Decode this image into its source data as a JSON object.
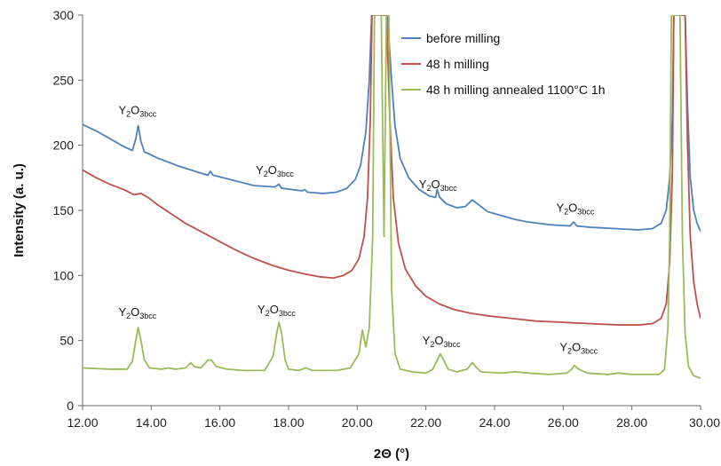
{
  "chart_data": {
    "type": "line",
    "title": "",
    "xlabel": "2Θ (°)",
    "ylabel": "Intensity (a. u.)",
    "xlim": [
      12,
      30
    ],
    "ylim": [
      0,
      300
    ],
    "x_ticks": [
      "12.00",
      "14.00",
      "16.00",
      "18.00",
      "20.00",
      "22.00",
      "24.00",
      "26.00",
      "28.00",
      "30.00"
    ],
    "y_ticks": [
      "0",
      "50",
      "100",
      "150",
      "200",
      "250",
      "300"
    ],
    "grid": false,
    "legend_position": "top-right",
    "series": [
      {
        "name": "before milling",
        "color": "#4f81bd",
        "points": [
          [
            12.0,
            216
          ],
          [
            12.4,
            211
          ],
          [
            12.8,
            205
          ],
          [
            13.2,
            199
          ],
          [
            13.45,
            196
          ],
          [
            13.55,
            205
          ],
          [
            13.62,
            215
          ],
          [
            13.7,
            203
          ],
          [
            13.8,
            195
          ],
          [
            14.2,
            190
          ],
          [
            14.8,
            184
          ],
          [
            15.4,
            179
          ],
          [
            15.65,
            177
          ],
          [
            15.72,
            180
          ],
          [
            15.8,
            177
          ],
          [
            16.4,
            173
          ],
          [
            17.0,
            169
          ],
          [
            17.6,
            168
          ],
          [
            17.72,
            170
          ],
          [
            17.8,
            167
          ],
          [
            18.4,
            165
          ],
          [
            18.47,
            166
          ],
          [
            18.55,
            164
          ],
          [
            19.0,
            163
          ],
          [
            19.4,
            164
          ],
          [
            19.7,
            167
          ],
          [
            19.95,
            174
          ],
          [
            20.1,
            185
          ],
          [
            20.25,
            210
          ],
          [
            20.35,
            250
          ],
          [
            20.42,
            300
          ],
          [
            20.88,
            300
          ],
          [
            21.0,
            250
          ],
          [
            21.1,
            215
          ],
          [
            21.25,
            190
          ],
          [
            21.5,
            175
          ],
          [
            21.8,
            166
          ],
          [
            22.1,
            161
          ],
          [
            22.28,
            160
          ],
          [
            22.33,
            166
          ],
          [
            22.4,
            160
          ],
          [
            22.6,
            155
          ],
          [
            22.9,
            152
          ],
          [
            23.15,
            153
          ],
          [
            23.35,
            158
          ],
          [
            23.55,
            154
          ],
          [
            23.8,
            149
          ],
          [
            24.2,
            146
          ],
          [
            24.6,
            143
          ],
          [
            25.0,
            141
          ],
          [
            25.6,
            139
          ],
          [
            26.2,
            138
          ],
          [
            26.3,
            141
          ],
          [
            26.4,
            138
          ],
          [
            26.8,
            137
          ],
          [
            27.5,
            136
          ],
          [
            28.2,
            135
          ],
          [
            28.6,
            136
          ],
          [
            28.85,
            140
          ],
          [
            29.0,
            150
          ],
          [
            29.1,
            175
          ],
          [
            29.18,
            220
          ],
          [
            29.22,
            300
          ],
          [
            29.55,
            300
          ],
          [
            29.62,
            230
          ],
          [
            29.7,
            175
          ],
          [
            29.8,
            150
          ],
          [
            29.9,
            140
          ],
          [
            30.0,
            134
          ]
        ]
      },
      {
        "name": "48 h milling",
        "color": "#c0504d",
        "points": [
          [
            12.0,
            181
          ],
          [
            12.4,
            175
          ],
          [
            12.8,
            170
          ],
          [
            13.2,
            166
          ],
          [
            13.5,
            162
          ],
          [
            13.7,
            163
          ],
          [
            13.9,
            160
          ],
          [
            14.2,
            154
          ],
          [
            14.6,
            147
          ],
          [
            15.0,
            140
          ],
          [
            15.5,
            133
          ],
          [
            16.0,
            126
          ],
          [
            16.5,
            119
          ],
          [
            17.0,
            113
          ],
          [
            17.5,
            108
          ],
          [
            18.0,
            104
          ],
          [
            18.5,
            101
          ],
          [
            18.9,
            99
          ],
          [
            19.3,
            98
          ],
          [
            19.6,
            100
          ],
          [
            19.85,
            104
          ],
          [
            20.05,
            113
          ],
          [
            20.2,
            130
          ],
          [
            20.3,
            160
          ],
          [
            20.38,
            220
          ],
          [
            20.43,
            300
          ],
          [
            20.85,
            300
          ],
          [
            20.95,
            220
          ],
          [
            21.05,
            160
          ],
          [
            21.2,
            125
          ],
          [
            21.4,
            105
          ],
          [
            21.7,
            92
          ],
          [
            22.0,
            84
          ],
          [
            22.4,
            78
          ],
          [
            22.8,
            74
          ],
          [
            23.3,
            71
          ],
          [
            23.8,
            69
          ],
          [
            24.5,
            67
          ],
          [
            25.2,
            65
          ],
          [
            26.0,
            64
          ],
          [
            26.8,
            63
          ],
          [
            27.6,
            62
          ],
          [
            28.2,
            62
          ],
          [
            28.6,
            63
          ],
          [
            28.85,
            67
          ],
          [
            29.0,
            78
          ],
          [
            29.1,
            110
          ],
          [
            29.18,
            180
          ],
          [
            29.22,
            300
          ],
          [
            29.55,
            300
          ],
          [
            29.62,
            200
          ],
          [
            29.7,
            130
          ],
          [
            29.8,
            95
          ],
          [
            29.9,
            78
          ],
          [
            30.0,
            67
          ]
        ]
      },
      {
        "name": "48 h milling annealed 1100°C 1h",
        "color": "#9bbb59",
        "points": [
          [
            12.0,
            29
          ],
          [
            12.8,
            28
          ],
          [
            13.3,
            28
          ],
          [
            13.45,
            34
          ],
          [
            13.55,
            50
          ],
          [
            13.62,
            60
          ],
          [
            13.7,
            50
          ],
          [
            13.8,
            35
          ],
          [
            13.95,
            29
          ],
          [
            14.3,
            28
          ],
          [
            14.5,
            29
          ],
          [
            14.7,
            28
          ],
          [
            15.0,
            29
          ],
          [
            15.15,
            33
          ],
          [
            15.25,
            30
          ],
          [
            15.45,
            29
          ],
          [
            15.65,
            35
          ],
          [
            15.75,
            35
          ],
          [
            15.9,
            30
          ],
          [
            16.2,
            28
          ],
          [
            16.7,
            27
          ],
          [
            17.3,
            27
          ],
          [
            17.55,
            38
          ],
          [
            17.65,
            55
          ],
          [
            17.72,
            64
          ],
          [
            17.8,
            55
          ],
          [
            17.9,
            35
          ],
          [
            18.0,
            28
          ],
          [
            18.3,
            27
          ],
          [
            18.5,
            29
          ],
          [
            18.7,
            27
          ],
          [
            19.4,
            27
          ],
          [
            19.8,
            29
          ],
          [
            20.05,
            40
          ],
          [
            20.15,
            58
          ],
          [
            20.25,
            45
          ],
          [
            20.35,
            60
          ],
          [
            20.45,
            130
          ],
          [
            20.5,
            300
          ],
          [
            20.7,
            300
          ],
          [
            20.78,
            130
          ],
          [
            20.85,
            300
          ],
          [
            20.92,
            300
          ],
          [
            21.0,
            90
          ],
          [
            21.1,
            40
          ],
          [
            21.25,
            28
          ],
          [
            21.6,
            26
          ],
          [
            22.0,
            25
          ],
          [
            22.2,
            28
          ],
          [
            22.35,
            36
          ],
          [
            22.42,
            40
          ],
          [
            22.5,
            36
          ],
          [
            22.65,
            28
          ],
          [
            22.9,
            26
          ],
          [
            23.2,
            28
          ],
          [
            23.35,
            33
          ],
          [
            23.45,
            30
          ],
          [
            23.6,
            26
          ],
          [
            24.2,
            25
          ],
          [
            24.6,
            26
          ],
          [
            25.0,
            25
          ],
          [
            25.6,
            24
          ],
          [
            26.1,
            25
          ],
          [
            26.25,
            28
          ],
          [
            26.32,
            31
          ],
          [
            26.45,
            28
          ],
          [
            26.7,
            25
          ],
          [
            27.3,
            24
          ],
          [
            27.6,
            25
          ],
          [
            28.0,
            24
          ],
          [
            28.5,
            24
          ],
          [
            28.8,
            24
          ],
          [
            28.95,
            28
          ],
          [
            29.05,
            60
          ],
          [
            29.1,
            130
          ],
          [
            29.15,
            300
          ],
          [
            29.4,
            300
          ],
          [
            29.47,
            130
          ],
          [
            29.55,
            55
          ],
          [
            29.65,
            30
          ],
          [
            29.8,
            23
          ],
          [
            30.0,
            21
          ]
        ]
      }
    ],
    "annotations": [
      {
        "text": "Y",
        "sub1": "2",
        "mid": "O",
        "sub2": "3bcc",
        "x": 13.6,
        "y": 224
      },
      {
        "text": "Y",
        "sub1": "2",
        "mid": "O",
        "sub2": "3bcc",
        "x": 17.6,
        "y": 178
      },
      {
        "text": "Y",
        "sub1": "2",
        "mid": "O",
        "sub2": "3bcc",
        "x": 22.35,
        "y": 167
      },
      {
        "text": "Y",
        "sub1": "2",
        "mid": "O",
        "sub2": "3bcc",
        "x": 26.35,
        "y": 149
      },
      {
        "text": "Y",
        "sub1": "2",
        "mid": "O",
        "sub2": "3bcc",
        "x": 13.6,
        "y": 69
      },
      {
        "text": "Y",
        "sub1": "2",
        "mid": "O",
        "sub2": "3bcc",
        "x": 17.65,
        "y": 71
      },
      {
        "text": "Y",
        "sub1": "2",
        "mid": "O",
        "sub2": "3bcc",
        "x": 22.45,
        "y": 47
      },
      {
        "text": "Y",
        "sub1": "2",
        "mid": "O",
        "sub2": "3bcc",
        "x": 26.45,
        "y": 42
      }
    ]
  }
}
